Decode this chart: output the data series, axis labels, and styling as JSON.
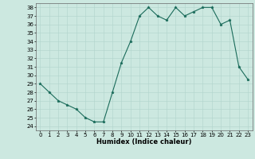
{
  "title": "",
  "xlabel": "Humidex (Indice chaleur)",
  "x": [
    0,
    1,
    2,
    3,
    4,
    5,
    6,
    7,
    8,
    9,
    10,
    11,
    12,
    13,
    14,
    15,
    16,
    17,
    18,
    19,
    20,
    21,
    22,
    23
  ],
  "y": [
    29,
    28,
    27,
    26.5,
    26,
    25,
    24.5,
    24.5,
    28,
    31.5,
    34,
    37,
    38,
    37,
    36.5,
    38,
    37,
    37.5,
    38,
    38,
    36,
    36.5,
    31,
    29.5
  ],
  "ylim": [
    23.5,
    38.5
  ],
  "xlim": [
    -0.5,
    23.5
  ],
  "yticks": [
    24,
    25,
    26,
    27,
    28,
    29,
    30,
    31,
    32,
    33,
    34,
    35,
    36,
    37,
    38
  ],
  "xticks": [
    0,
    1,
    2,
    3,
    4,
    5,
    6,
    7,
    8,
    9,
    10,
    11,
    12,
    13,
    14,
    15,
    16,
    17,
    18,
    19,
    20,
    21,
    22,
    23
  ],
  "line_color": "#1a6b5a",
  "marker": "*",
  "marker_size": 2.5,
  "bg_color": "#cce8e0",
  "grid_color": "#b0d4cc",
  "tick_fontsize": 5,
  "xlabel_fontsize": 6,
  "linewidth": 0.8
}
